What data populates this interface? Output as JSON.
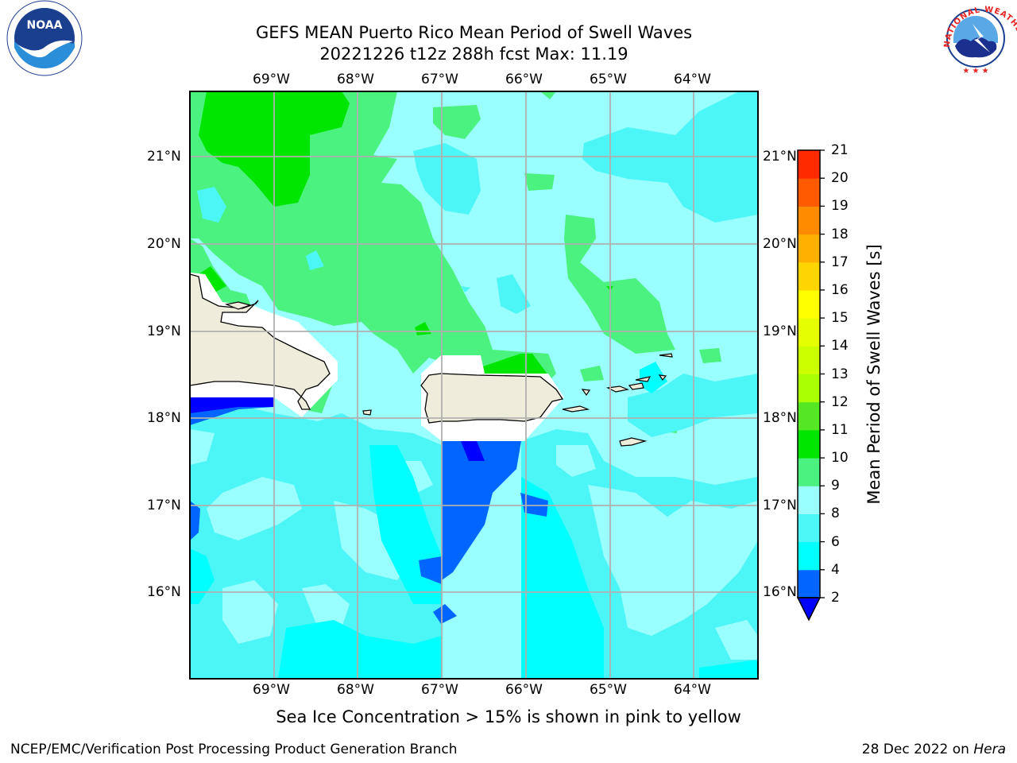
{
  "title": {
    "line1": "GEFS MEAN Puerto Rico Mean Period of Swell Waves",
    "line2": "20221226 t12z 288h fcst   Max: 11.19"
  },
  "map": {
    "lon_labels": [
      "69°W",
      "68°W",
      "67°W",
      "66°W",
      "65°W",
      "64°W"
    ],
    "lat_labels": [
      "21°N",
      "20°N",
      "19°N",
      "18°N",
      "17°N",
      "16°N"
    ],
    "lon_range": [
      -70.0,
      -63.25
    ],
    "lat_range": [
      15.0,
      21.75
    ],
    "ocean_color": "#99ffff",
    "land_color": "#eeecda"
  },
  "colorbar": {
    "title": "Mean Period of Swell Waves [s]",
    "levels": [
      "2",
      "4",
      "6",
      "8",
      "9",
      "10",
      "11",
      "12",
      "13",
      "14",
      "15",
      "16",
      "17",
      "18",
      "19",
      "20",
      "21"
    ],
    "colors": [
      "#0066ff",
      "#00ffff",
      "#4cf6f6",
      "#99ffff",
      "#4cf27f",
      "#00e600",
      "#55e624",
      "#aaff00",
      "#ccff00",
      "#e6ff00",
      "#ffff00",
      "#ffd500",
      "#ffb000",
      "#ff8c00",
      "#ff5a00",
      "#ff2a00",
      "#ff0000"
    ],
    "under_color": "#0000ff"
  },
  "footer": {
    "note": "Sea Ice Concentration > 15% is shown in pink to yellow",
    "left": "NCEP/EMC/Verification Post Processing Product Generation Branch",
    "date": "28 Dec 2022 on ",
    "machine": "Hera"
  },
  "logos": {
    "noaa_text": "NOAA",
    "nws_text": "NATIONAL WEATHER SERVICE"
  }
}
